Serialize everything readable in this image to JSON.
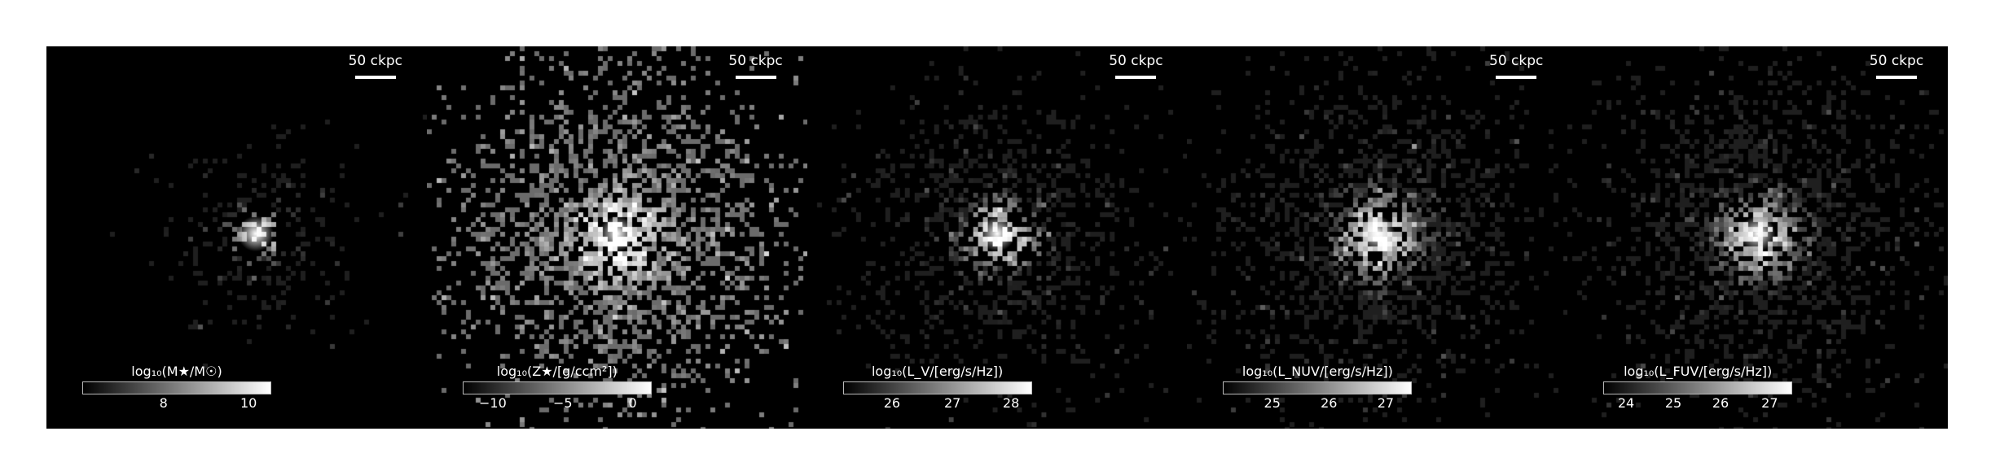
{
  "figure": {
    "panels": [
      {
        "scale_label": "50 ckpc",
        "colorbar_label": "log₁₀(M★/M☉)",
        "ticks": [
          {
            "label": "8",
            "frac": 0.43
          },
          {
            "label": "10",
            "frac": 0.88
          }
        ]
      },
      {
        "scale_label": "50 ckpc",
        "colorbar_label": "log₁₀(Z★/[g/ccm²])",
        "ticks": [
          {
            "label": "−10",
            "frac": 0.16
          },
          {
            "label": "−5",
            "frac": 0.53
          },
          {
            "label": "0",
            "frac": 0.9
          }
        ]
      },
      {
        "scale_label": "50 ckpc",
        "colorbar_label": "log₁₀(L_V/[erg/s/Hz])",
        "ticks": [
          {
            "label": "26",
            "frac": 0.26
          },
          {
            "label": "27",
            "frac": 0.58
          },
          {
            "label": "28",
            "frac": 0.89
          }
        ]
      },
      {
        "scale_label": "50 ckpc",
        "colorbar_label": "log₁₀(L_NUV/[erg/s/Hz])",
        "ticks": [
          {
            "label": "25",
            "frac": 0.26
          },
          {
            "label": "26",
            "frac": 0.56
          },
          {
            "label": "27",
            "frac": 0.86
          }
        ]
      },
      {
        "scale_label": "50 ckpc",
        "colorbar_label": "log₁₀(L_FUV/[erg/s/Hz])",
        "ticks": [
          {
            "label": "24",
            "frac": 0.12
          },
          {
            "label": "25",
            "frac": 0.37
          },
          {
            "label": "26",
            "frac": 0.62
          },
          {
            "label": "27",
            "frac": 0.88
          }
        ]
      }
    ]
  }
}
